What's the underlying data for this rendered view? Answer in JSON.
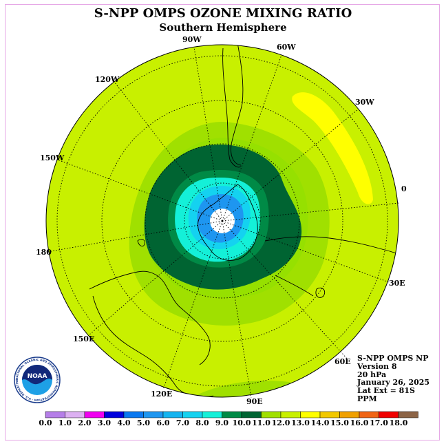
{
  "title": "S-NPP OMPS OZONE MIXING RATIO",
  "subtitle": "Southern Hemisphere",
  "longitude_labels": [
    "90W",
    "60W",
    "30W",
    "0",
    "30E",
    "60E",
    "90E",
    "120E",
    "150E",
    "180",
    "150W",
    "120W"
  ],
  "info": {
    "instrument": "S-NPP OMPS NP",
    "version": "Version 8",
    "level": "20 hPa",
    "date": "January 26, 2025",
    "lat_ext": "Lat Ext = 81S",
    "units": "PPM"
  },
  "logo": {
    "text": "NOAA",
    "ring_text": "NATIONAL OCEANIC AND ATMOSPHERIC ADMINISTRATION · U.S. DEPARTMENT OF COMMERCE"
  },
  "colorbar": {
    "ticks": [
      "0.0",
      "1.0",
      "2.0",
      "3.0",
      "4.0",
      "5.0",
      "6.0",
      "7.0",
      "8.0",
      "9.0",
      "10.0",
      "11.0",
      "12.0",
      "13.0",
      "14.0",
      "15.0",
      "16.0",
      "17.0",
      "18.0"
    ],
    "colors": [
      "#b57ee8",
      "#dcb0f2",
      "#f000f0",
      "#0000dd",
      "#0a78f0",
      "#1e96f0",
      "#14b4f0",
      "#14d2f0",
      "#14f0d8",
      "#008a46",
      "#006432",
      "#a0e000",
      "#c8f000",
      "#ffff00",
      "#f2c800",
      "#f0a000",
      "#f06414",
      "#f00000",
      "#8c6446"
    ]
  },
  "map": {
    "background_color": "#c8f000",
    "contour_levels_ppm": [
      7.0,
      8.0,
      9.0,
      10.0,
      11.0,
      13.0
    ],
    "pole_fill": "white"
  }
}
